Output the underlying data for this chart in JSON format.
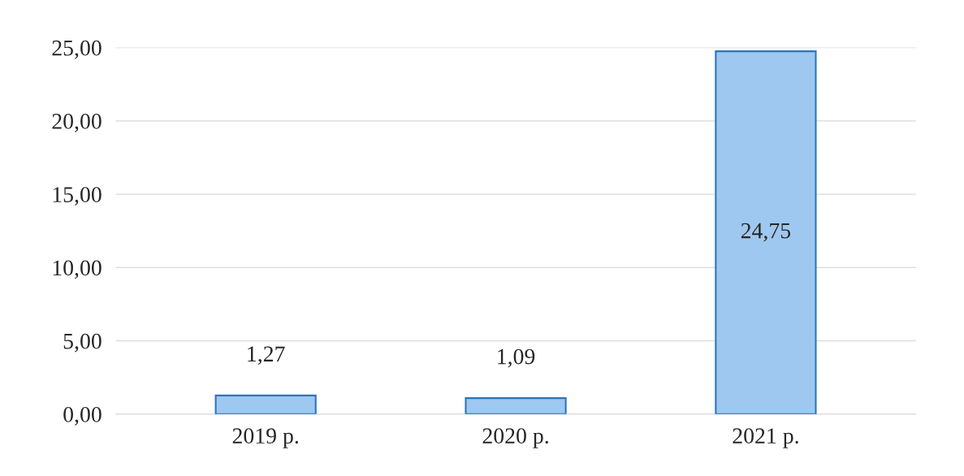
{
  "chart_data": {
    "type": "bar",
    "categories": [
      "2019 р.",
      "2020 р.",
      "2021 р."
    ],
    "values": [
      1.27,
      1.09,
      24.75
    ],
    "value_labels": [
      "1,27",
      "1,09",
      "24,75"
    ],
    "color": "#9fc8f0",
    "ylim": [
      0,
      25
    ],
    "yticks": [
      {
        "value": 0,
        "label": "0,00"
      },
      {
        "value": 5,
        "label": "5,00"
      },
      {
        "value": 10,
        "label": "10,00"
      },
      {
        "value": 15,
        "label": "15,00"
      },
      {
        "value": 20,
        "label": "20,00"
      },
      {
        "value": 25,
        "label": "25,00"
      }
    ],
    "grid": "y"
  }
}
